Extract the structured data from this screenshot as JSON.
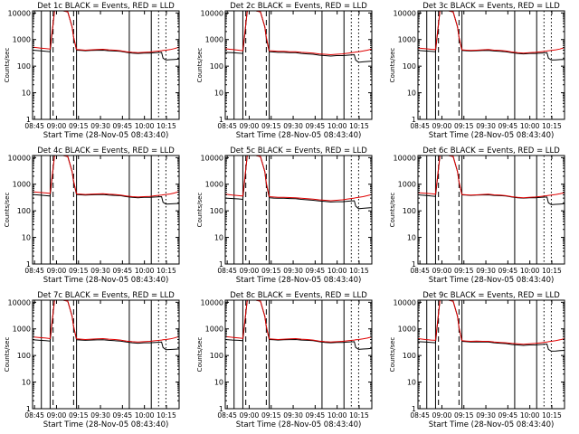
{
  "figure": {
    "ylabel": "Counts/sec",
    "xlabel": "Start Time (28-Nov-05 08:43:40)"
  },
  "chart_data": {
    "type": "line",
    "layout": "3x3 grid of panels",
    "shared_axes": {
      "x_tick_labels": [
        "08:45",
        "09:00",
        "09:15",
        "09:30",
        "09:45",
        "10:00",
        "10:15"
      ],
      "x_tick_minutes": [
        1.33,
        16.33,
        31.33,
        46.33,
        61.33,
        76.33,
        91.33
      ],
      "x_unit": "minutes since 08:43:40",
      "xlim": [
        0,
        100
      ],
      "ylim": [
        1,
        12000
      ],
      "y_scale": "log",
      "y_tick_labels": [
        "1",
        "10",
        "100",
        "1000",
        "10000"
      ],
      "y_tick_values": [
        1,
        10,
        100,
        1000,
        10000
      ],
      "ylabel": "Counts/sec",
      "xlabel": "Start Time (28-Nov-05 08:43:40)",
      "grid": false
    },
    "marker_lines": [
      {
        "minute": 6,
        "style": "solid"
      },
      {
        "minute": 12,
        "style": "solid"
      },
      {
        "minute": 14,
        "style": "dashed"
      },
      {
        "minute": 28,
        "style": "dashed"
      },
      {
        "minute": 30,
        "style": "solid"
      },
      {
        "minute": 66,
        "style": "solid"
      },
      {
        "minute": 81,
        "style": "solid"
      },
      {
        "minute": 86,
        "style": "dotted"
      },
      {
        "minute": 91,
        "style": "dotted"
      }
    ],
    "series_styles": [
      {
        "name": "Events",
        "color": "#000000"
      },
      {
        "name": "LLD",
        "color": "#e00000"
      }
    ],
    "panels": [
      {
        "title": "Det 1c BLACK = Events, RED = LLD",
        "x_minutes": [
          0,
          5,
          9,
          12,
          15,
          18,
          21,
          24,
          27,
          28,
          30,
          33,
          36,
          40,
          44,
          48,
          52,
          56,
          60,
          64,
          68,
          72,
          76,
          80,
          84,
          88,
          89,
          91,
          94,
          97,
          100
        ],
        "series": [
          {
            "values": [
              400,
              380,
              360,
              350,
              12000,
              12000,
              12000,
              11000,
              3000,
              1200,
              400,
              390,
              380,
              390,
              395,
              400,
              380,
              370,
              360,
              330,
              310,
              300,
              310,
              310,
              320,
              330,
              200,
              170,
              175,
              180,
              185
            ]
          },
          {
            "values": [
              520,
              480,
              460,
              440,
              12000,
              12000,
              12000,
              11000,
              3000,
              1200,
              420,
              410,
              400,
              410,
              420,
              430,
              410,
              400,
              380,
              350,
              330,
              320,
              330,
              340,
              360,
              380,
              390,
              400,
              420,
              460,
              520
            ]
          }
        ]
      },
      {
        "title": "Det 2c BLACK = Events, RED = LLD",
        "x_minutes": [
          0,
          5,
          9,
          12,
          15,
          18,
          21,
          24,
          27,
          28,
          30,
          33,
          36,
          40,
          44,
          48,
          52,
          56,
          60,
          64,
          68,
          72,
          76,
          80,
          84,
          88,
          89,
          91,
          94,
          97,
          100
        ],
        "series": [
          {
            "values": [
              330,
              320,
              310,
              300,
              12000,
              12000,
              12000,
              11000,
              3000,
              1100,
              350,
              340,
              330,
              330,
              320,
              320,
              300,
              290,
              280,
              260,
              250,
              240,
              250,
              250,
              260,
              270,
              170,
              140,
              145,
              150,
              155
            ]
          },
          {
            "values": [
              450,
              420,
              400,
              380,
              12000,
              12000,
              12000,
              11000,
              3000,
              1200,
              380,
              370,
              360,
              360,
              350,
              350,
              330,
              320,
              310,
              290,
              280,
              270,
              280,
              290,
              310,
              330,
              340,
              350,
              370,
              400,
              440
            ]
          }
        ]
      },
      {
        "title": "Det 3c BLACK = Events, RED = LLD",
        "x_minutes": [
          0,
          5,
          9,
          12,
          15,
          18,
          21,
          24,
          27,
          28,
          30,
          33,
          36,
          40,
          44,
          48,
          52,
          56,
          60,
          64,
          68,
          72,
          76,
          80,
          84,
          88,
          89,
          91,
          94,
          97,
          100
        ],
        "series": [
          {
            "values": [
              390,
              370,
              360,
              350,
              12000,
              12000,
              12000,
              11000,
              3000,
              1200,
              390,
              380,
              370,
              380,
              385,
              390,
              370,
              360,
              350,
              320,
              300,
              290,
              300,
              300,
              310,
              320,
              200,
              170,
              172,
              176,
              180
            ]
          },
          {
            "values": [
              480,
              450,
              430,
              420,
              12000,
              12000,
              12000,
              11000,
              3000,
              1200,
              410,
              400,
              390,
              400,
              410,
              420,
              400,
              390,
              370,
              340,
              320,
              310,
              320,
              330,
              350,
              370,
              380,
              390,
              410,
              440,
              500
            ]
          }
        ]
      },
      {
        "title": "Det 4c BLACK = Events, RED = LLD",
        "x_minutes": [
          0,
          5,
          9,
          12,
          15,
          18,
          21,
          24,
          27,
          28,
          30,
          33,
          36,
          40,
          44,
          48,
          52,
          56,
          60,
          64,
          68,
          72,
          76,
          80,
          84,
          88,
          89,
          91,
          94,
          97,
          100
        ],
        "series": [
          {
            "values": [
              410,
              390,
              370,
              360,
              12000,
              12000,
              12000,
              11000,
              3000,
              1200,
              410,
              400,
              390,
              400,
              405,
              410,
              390,
              380,
              370,
              340,
              320,
              310,
              320,
              320,
              330,
              340,
              210,
              180,
              182,
              186,
              190
            ]
          },
          {
            "values": [
              520,
              490,
              470,
              450,
              12000,
              12000,
              12000,
              11000,
              3000,
              1300,
              430,
              420,
              410,
              420,
              430,
              440,
              420,
              410,
              390,
              360,
              340,
              330,
              340,
              350,
              370,
              390,
              400,
              410,
              430,
              470,
              530
            ]
          }
        ]
      },
      {
        "title": "Det 5c BLACK = Events, RED = LLD",
        "x_minutes": [
          0,
          5,
          9,
          12,
          15,
          18,
          21,
          24,
          27,
          28,
          30,
          33,
          36,
          40,
          44,
          48,
          52,
          56,
          60,
          64,
          68,
          72,
          76,
          80,
          84,
          88,
          89,
          91,
          94,
          97,
          100
        ],
        "series": [
          {
            "values": [
              300,
              290,
              280,
              270,
              12000,
              12000,
              12000,
              11000,
              3000,
              1000,
              310,
              300,
              295,
              295,
              290,
              285,
              270,
              260,
              250,
              235,
              225,
              215,
              220,
              220,
              230,
              240,
              150,
              120,
              124,
              128,
              132
            ]
          },
          {
            "values": [
              420,
              390,
              370,
              360,
              12000,
              12000,
              12000,
              11000,
              3000,
              1100,
              340,
              330,
              320,
              320,
              315,
              310,
              295,
              285,
              275,
              260,
              250,
              240,
              250,
              260,
              280,
              300,
              310,
              320,
              340,
              370,
              410
            ]
          }
        ]
      },
      {
        "title": "Det 6c BLACK = Events, RED = LLD",
        "x_minutes": [
          0,
          5,
          9,
          12,
          15,
          18,
          21,
          24,
          27,
          28,
          30,
          33,
          36,
          40,
          44,
          48,
          52,
          56,
          60,
          64,
          68,
          72,
          76,
          80,
          84,
          88,
          89,
          91,
          94,
          97,
          100
        ],
        "series": [
          {
            "values": [
              400,
              380,
              360,
              350,
              12000,
              12000,
              12000,
              11000,
              3000,
              1200,
              400,
              390,
              380,
              390,
              395,
              400,
              380,
              370,
              360,
              330,
              310,
              300,
              310,
              310,
              320,
              330,
              200,
              170,
              175,
              180,
              185
            ]
          },
          {
            "values": [
              480,
              460,
              440,
              420,
              12000,
              12000,
              12000,
              11000,
              3000,
              1200,
              410,
              400,
              390,
              400,
              410,
              420,
              400,
              390,
              370,
              340,
              320,
              310,
              320,
              330,
              350,
              370,
              380,
              390,
              410,
              440,
              480
            ]
          }
        ]
      },
      {
        "title": "Det 7c BLACK = Events, RED = LLD",
        "x_minutes": [
          0,
          5,
          9,
          12,
          15,
          18,
          21,
          24,
          27,
          28,
          30,
          33,
          36,
          40,
          44,
          48,
          52,
          56,
          60,
          64,
          68,
          72,
          76,
          80,
          84,
          88,
          89,
          91,
          94,
          97,
          100
        ],
        "series": [
          {
            "values": [
              390,
              370,
              360,
              350,
              12000,
              12000,
              12000,
              11000,
              3000,
              1200,
              390,
              380,
              370,
              380,
              385,
              390,
              370,
              360,
              350,
              320,
              300,
              290,
              300,
              300,
              310,
              320,
              200,
              165,
              168,
              172,
              176
            ]
          },
          {
            "values": [
              500,
              470,
              450,
              430,
              12000,
              12000,
              12000,
              11000,
              3000,
              1200,
              420,
              410,
              400,
              410,
              420,
              430,
              410,
              400,
              380,
              350,
              330,
              320,
              330,
              340,
              360,
              380,
              390,
              400,
              420,
              460,
              520
            ]
          }
        ]
      },
      {
        "title": "Det 8c BLACK = Events, RED = LLD",
        "x_minutes": [
          0,
          5,
          9,
          12,
          15,
          18,
          21,
          24,
          27,
          28,
          30,
          33,
          36,
          40,
          44,
          48,
          52,
          56,
          60,
          64,
          68,
          72,
          76,
          80,
          84,
          88,
          89,
          91,
          94,
          97,
          100
        ],
        "series": [
          {
            "values": [
              400,
              380,
              370,
              360,
              12000,
              12000,
              12000,
              11000,
              3000,
              1200,
              400,
              390,
              380,
              390,
              395,
              400,
              380,
              370,
              360,
              330,
              310,
              300,
              310,
              310,
              320,
              330,
              200,
              170,
              175,
              180,
              185
            ]
          },
          {
            "values": [
              510,
              480,
              460,
              440,
              12000,
              12000,
              12000,
              11000,
              3000,
              1200,
              420,
              410,
              400,
              410,
              420,
              430,
              410,
              400,
              380,
              350,
              330,
              320,
              330,
              340,
              360,
              380,
              390,
              400,
              420,
              450,
              500
            ]
          }
        ]
      },
      {
        "title": "Det 9c BLACK = Events, RED = LLD",
        "x_minutes": [
          0,
          5,
          9,
          12,
          15,
          18,
          21,
          24,
          27,
          28,
          30,
          33,
          36,
          40,
          44,
          48,
          52,
          56,
          60,
          64,
          68,
          72,
          76,
          80,
          84,
          88,
          89,
          91,
          94,
          97,
          100
        ],
        "series": [
          {
            "values": [
              330,
              320,
              310,
              300,
              12000,
              12000,
              12000,
              11000,
              3000,
              1100,
              340,
              330,
              320,
              325,
              320,
              320,
              300,
              290,
              280,
              260,
              250,
              240,
              250,
              250,
              260,
              270,
              170,
              145,
              148,
              152,
              156
            ]
          },
          {
            "values": [
              430,
              400,
              380,
              370,
              12000,
              12000,
              12000,
              11000,
              3000,
              1100,
              360,
              350,
              340,
              345,
              340,
              340,
              320,
              310,
              300,
              285,
              275,
              265,
              275,
              285,
              300,
              320,
              330,
              340,
              360,
              390,
              430
            ]
          }
        ]
      }
    ]
  }
}
